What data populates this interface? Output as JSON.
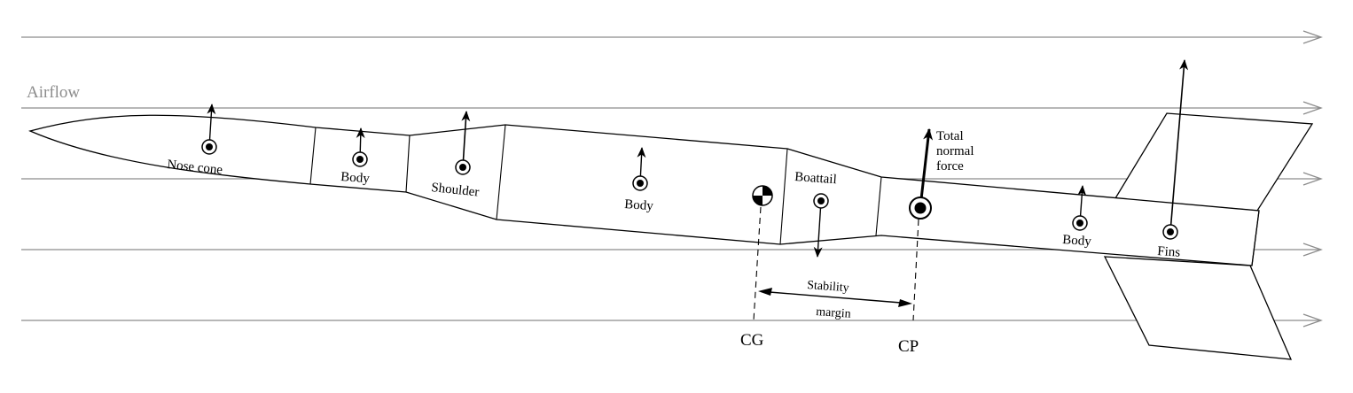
{
  "labels": {
    "airflow": "Airflow",
    "nose_cone": "Nose cone",
    "body_1": "Body",
    "shoulder": "Shoulder",
    "body_2": "Body",
    "boattail": "Boattail",
    "body_3": "Body",
    "fins": "Fins",
    "total_normal_force_line1": "Total",
    "total_normal_force_line2": "normal",
    "total_normal_force_line3": "force",
    "stability_line1": "Stability",
    "stability_line2": "margin",
    "cg": "CG",
    "cp": "CP"
  },
  "colors": {
    "airflow": "#8c8c8c",
    "outline": "#000000",
    "background": "#ffffff"
  }
}
